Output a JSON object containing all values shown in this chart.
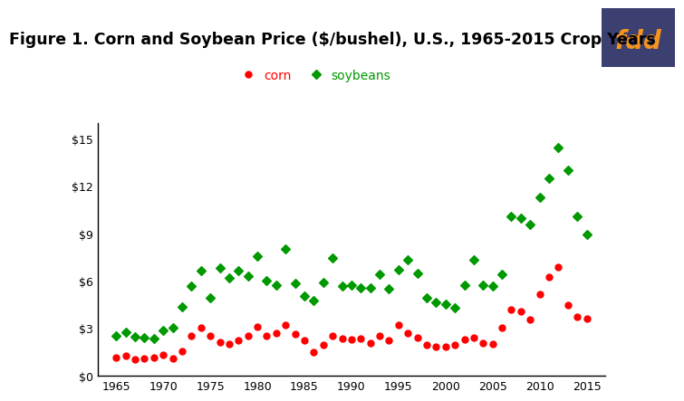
{
  "title": "Figure 1. Corn and Soybean Price ($/bushel), U.S., 1965-2015 Crop Years",
  "title_fontsize": 12.5,
  "corn_years": [
    1965,
    1966,
    1967,
    1968,
    1969,
    1970,
    1971,
    1972,
    1973,
    1974,
    1975,
    1976,
    1977,
    1978,
    1979,
    1980,
    1981,
    1982,
    1983,
    1984,
    1985,
    1986,
    1987,
    1988,
    1989,
    1990,
    1991,
    1992,
    1993,
    1994,
    1995,
    1996,
    1997,
    1998,
    1999,
    2000,
    2001,
    2002,
    2003,
    2004,
    2005,
    2006,
    2007,
    2008,
    2009,
    2010,
    2011,
    2012,
    2013,
    2014,
    2015
  ],
  "corn_prices": [
    1.16,
    1.24,
    1.03,
    1.08,
    1.15,
    1.33,
    1.08,
    1.57,
    2.55,
    3.02,
    2.54,
    2.15,
    2.02,
    2.25,
    2.52,
    3.11,
    2.5,
    2.68,
    3.21,
    2.63,
    2.23,
    1.5,
    1.94,
    2.54,
    2.36,
    2.28,
    2.37,
    2.07,
    2.5,
    2.26,
    3.24,
    2.71,
    2.43,
    1.94,
    1.82,
    1.85,
    1.97,
    2.32,
    2.42,
    2.06,
    2.0,
    3.04,
    4.2,
    4.06,
    3.55,
    5.18,
    6.22,
    6.89,
    4.46,
    3.7,
    3.61
  ],
  "soy_years": [
    1965,
    1966,
    1967,
    1968,
    1969,
    1970,
    1971,
    1972,
    1973,
    1974,
    1975,
    1976,
    1977,
    1978,
    1979,
    1980,
    1981,
    1982,
    1983,
    1984,
    1985,
    1986,
    1987,
    1988,
    1989,
    1990,
    1991,
    1992,
    1993,
    1994,
    1995,
    1996,
    1997,
    1998,
    1999,
    2000,
    2001,
    2002,
    2003,
    2004,
    2005,
    2006,
    2007,
    2008,
    2009,
    2010,
    2011,
    2012,
    2013,
    2014,
    2015
  ],
  "soy_prices": [
    2.54,
    2.75,
    2.49,
    2.43,
    2.35,
    2.85,
    3.03,
    4.37,
    5.68,
    6.64,
    4.92,
    6.81,
    6.19,
    6.66,
    6.28,
    7.57,
    6.02,
    5.71,
    8.0,
    5.84,
    5.05,
    4.78,
    5.88,
    7.42,
    5.7,
    5.74,
    5.58,
    5.56,
    6.4,
    5.48,
    6.72,
    7.35,
    6.47,
    4.93,
    4.63,
    4.54,
    4.3,
    5.74,
    7.34,
    5.74,
    5.66,
    6.43,
    10.1,
    9.97,
    9.59,
    11.3,
    12.5,
    14.4,
    13.0,
    10.1,
    8.95
  ],
  "corn_color": "#FF0000",
  "soy_color": "#009900",
  "bg_color": "#FFFFFF",
  "xlim": [
    1963,
    2017
  ],
  "ylim": [
    0,
    16
  ],
  "yticks": [
    0,
    3,
    6,
    9,
    12,
    15
  ],
  "ytick_labels": [
    "$0",
    "$3",
    "$6",
    "$9",
    "$12",
    "$15"
  ],
  "xticks": [
    1965,
    1970,
    1975,
    1980,
    1985,
    1990,
    1995,
    2000,
    2005,
    2010,
    2015
  ],
  "fdd_bg": "#3B4070",
  "fdd_text": "#F7941D",
  "marker_size_corn": 5,
  "marker_size_soy": 5,
  "legend_text_color": "#0000CD"
}
